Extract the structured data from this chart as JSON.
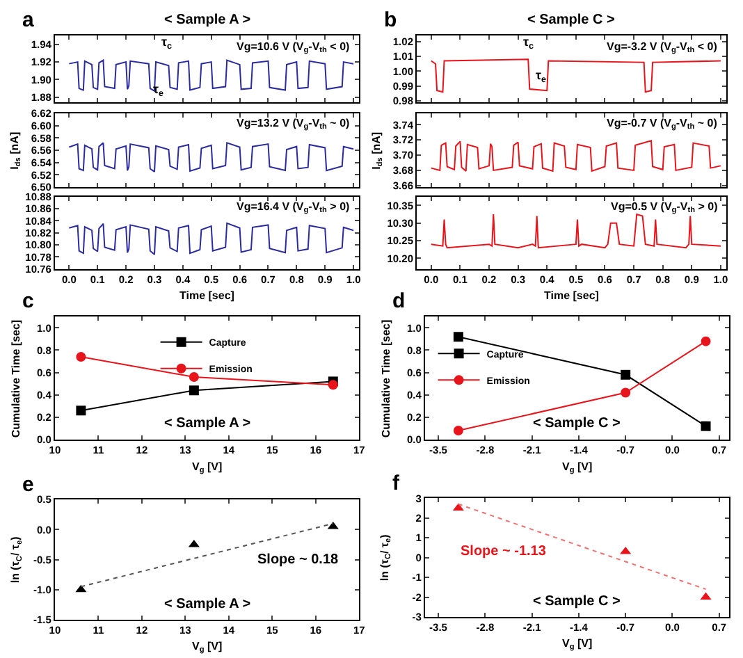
{
  "chart_data": [
    {
      "type": "line",
      "title": "a",
      "subtitle": "< Sample A >",
      "x": [
        0,
        0.03,
        0.035,
        0.05,
        0.055,
        0.08,
        0.085,
        0.1,
        0.105,
        0.12,
        0.125,
        0.16,
        0.165,
        0.2,
        0.205,
        0.21,
        0.215,
        0.28,
        0.285,
        0.3,
        0.305,
        0.35,
        0.355,
        0.38,
        0.385,
        0.42,
        0.425,
        0.46,
        0.465,
        0.5,
        0.505,
        0.55,
        0.555,
        0.6,
        0.605,
        0.64,
        0.645,
        0.7,
        0.705,
        0.76,
        0.765,
        0.8,
        0.805,
        0.84,
        0.845,
        0.9,
        0.905,
        0.96,
        0.965,
        1.0
      ],
      "series": [
        {
          "color": "#2b2ba0",
          "values": [
            1.918,
            1.92,
            1.89,
            1.888,
            1.921,
            1.917,
            1.891,
            1.889,
            1.919,
            1.922,
            1.892,
            1.89,
            1.917,
            1.92,
            1.889,
            1.893,
            1.921,
            1.918,
            1.89,
            1.887,
            1.92,
            1.916,
            1.891,
            1.889,
            1.919,
            1.921,
            1.888,
            1.891,
            1.918,
            1.92,
            1.89,
            1.892,
            1.922,
            1.917,
            1.889,
            1.89,
            1.919,
            1.921,
            1.891,
            1.888,
            1.917,
            1.92,
            1.89,
            1.891,
            1.921,
            1.918,
            1.889,
            1.892,
            1.92,
            1.918
          ]
        }
      ],
      "xlim": [
        -0.05,
        1.02
      ],
      "xticks": [
        {
          "value": 0,
          "label": null
        },
        {
          "value": 0.1,
          "label": null
        },
        {
          "value": 0.2,
          "label": null
        },
        {
          "value": 0.3,
          "label": null
        },
        {
          "value": 0.4,
          "label": null
        },
        {
          "value": 0.5,
          "label": null
        },
        {
          "value": 0.6,
          "label": null
        },
        {
          "value": 0.7,
          "label": null
        },
        {
          "value": 0.8,
          "label": null
        },
        {
          "value": 0.9,
          "label": null
        },
        {
          "value": 1,
          "label": null
        }
      ],
      "ylim": [
        1.874,
        1.95
      ],
      "yticks": [
        1.88,
        {
          "value": 1.9,
          "label": "1.90"
        },
        1.92,
        1.94
      ],
      "tick_labels": "y",
      "annotations": [
        "Vg=10.6 V (V$_{g}$-V$_{th}$ < 0)",
        "τ$_{c}$",
        "τ$_{e}$"
      ]
    },
    {
      "type": "line",
      "ylabel": "I$_{ds}$ [nA]",
      "x": [
        0,
        0.03,
        0.035,
        0.05,
        0.055,
        0.08,
        0.085,
        0.1,
        0.105,
        0.12,
        0.125,
        0.16,
        0.165,
        0.2,
        0.205,
        0.21,
        0.215,
        0.28,
        0.285,
        0.3,
        0.305,
        0.35,
        0.355,
        0.38,
        0.385,
        0.42,
        0.425,
        0.46,
        0.465,
        0.5,
        0.505,
        0.55,
        0.555,
        0.6,
        0.605,
        0.64,
        0.645,
        0.7,
        0.705,
        0.76,
        0.765,
        0.8,
        0.805,
        0.84,
        0.845,
        0.9,
        0.905,
        0.96,
        0.965,
        1.0
      ],
      "series": [
        {
          "color": "#2b2ba0",
          "values": [
            6.565,
            6.57,
            6.53,
            6.527,
            6.568,
            6.562,
            6.532,
            6.528,
            6.566,
            6.572,
            6.535,
            6.53,
            6.562,
            6.567,
            6.527,
            6.533,
            6.57,
            6.564,
            6.53,
            6.525,
            6.567,
            6.561,
            6.534,
            6.529,
            6.565,
            6.569,
            6.526,
            6.531,
            6.563,
            6.568,
            6.53,
            6.535,
            6.572,
            6.565,
            6.528,
            6.532,
            6.566,
            6.57,
            6.533,
            6.527,
            6.561,
            6.566,
            6.53,
            6.532,
            6.569,
            6.564,
            6.527,
            6.534,
            6.566,
            6.562
          ]
        }
      ],
      "xlim": [
        -0.05,
        1.02
      ],
      "xticks": [
        {
          "value": 0,
          "label": null
        },
        {
          "value": 0.1,
          "label": null
        },
        {
          "value": 0.2,
          "label": null
        },
        {
          "value": 0.3,
          "label": null
        },
        {
          "value": 0.4,
          "label": null
        },
        {
          "value": 0.5,
          "label": null
        },
        {
          "value": 0.6,
          "label": null
        },
        {
          "value": 0.7,
          "label": null
        },
        {
          "value": 0.8,
          "label": null
        },
        {
          "value": 0.9,
          "label": null
        },
        {
          "value": 1,
          "label": null
        }
      ],
      "ylim": [
        6.5,
        6.62
      ],
      "yticks": [
        {
          "value": 6.5,
          "label": "6.50"
        },
        6.52,
        6.54,
        6.56,
        6.58,
        {
          "value": 6.6,
          "label": "6.60"
        },
        6.62
      ],
      "tick_labels": "y",
      "annotations": [
        "Vg=13.2 V (V$_{g}$-V$_{th}$ ~ 0)"
      ]
    },
    {
      "type": "line",
      "xlabel": "Time [sec]",
      "x": [
        0,
        0.03,
        0.035,
        0.05,
        0.055,
        0.08,
        0.085,
        0.1,
        0.105,
        0.12,
        0.125,
        0.16,
        0.165,
        0.2,
        0.205,
        0.21,
        0.215,
        0.28,
        0.285,
        0.3,
        0.305,
        0.35,
        0.355,
        0.38,
        0.385,
        0.42,
        0.425,
        0.46,
        0.465,
        0.5,
        0.505,
        0.55,
        0.555,
        0.6,
        0.605,
        0.64,
        0.645,
        0.7,
        0.705,
        0.76,
        0.765,
        0.8,
        0.805,
        0.84,
        0.845,
        0.9,
        0.905,
        0.96,
        0.965,
        1.0
      ],
      "series": [
        {
          "color": "#2b2ba0",
          "values": [
            10.828,
            10.832,
            10.79,
            10.786,
            10.83,
            10.824,
            10.794,
            10.789,
            10.827,
            10.835,
            10.796,
            10.791,
            10.825,
            10.83,
            10.787,
            10.793,
            10.833,
            10.826,
            10.79,
            10.784,
            10.83,
            10.823,
            10.795,
            10.789,
            10.828,
            10.832,
            10.786,
            10.792,
            10.825,
            10.831,
            10.79,
            10.796,
            10.836,
            10.828,
            10.788,
            10.792,
            10.829,
            10.833,
            10.794,
            10.787,
            10.824,
            10.829,
            10.79,
            10.793,
            10.832,
            10.827,
            10.787,
            10.795,
            10.829,
            10.824
          ]
        }
      ],
      "xlim": [
        -0.05,
        1.02
      ],
      "xticks": [
        {
          "value": 0,
          "label": "0.0"
        },
        0.1,
        0.2,
        0.3,
        0.4,
        0.5,
        0.6,
        0.7,
        0.8,
        0.9,
        {
          "value": 1,
          "label": "1.0"
        }
      ],
      "ylim": [
        10.76,
        10.88
      ],
      "yticks": [
        10.76,
        10.78,
        {
          "value": 10.8,
          "label": "10.80"
        },
        10.82,
        10.84,
        10.86,
        10.88
      ],
      "annotations": [
        "Vg=16.4 V (V$_{g}$-V$_{th}$ > 0)"
      ]
    },
    {
      "type": "line",
      "title": "b",
      "subtitle": "< Sample C >",
      "x": [
        0,
        0.015,
        0.02,
        0.04,
        0.045,
        0.335,
        0.34,
        0.4,
        0.405,
        0.735,
        0.74,
        0.76,
        0.765,
        1.0
      ],
      "series": [
        {
          "color": "#e8141b",
          "values": [
            1.007,
            1.005,
            0.987,
            0.986,
            1.007,
            1.008,
            0.988,
            0.987,
            1.007,
            1.006,
            0.986,
            0.987,
            1.006,
            1.007
          ]
        }
      ],
      "xlim": [
        -0.05,
        1.02
      ],
      "xticks": [
        {
          "value": 0,
          "label": null
        },
        {
          "value": 0.1,
          "label": null
        },
        {
          "value": 0.2,
          "label": null
        },
        {
          "value": 0.3,
          "label": null
        },
        {
          "value": 0.4,
          "label": null
        },
        {
          "value": 0.5,
          "label": null
        },
        {
          "value": 0.6,
          "label": null
        },
        {
          "value": 0.7,
          "label": null
        },
        {
          "value": 0.8,
          "label": null
        },
        {
          "value": 0.9,
          "label": null
        },
        {
          "value": 1,
          "label": null
        }
      ],
      "ylim": [
        0.979,
        1.024
      ],
      "yticks": [
        0.98,
        0.99,
        {
          "value": 1,
          "label": "1.00"
        },
        1.01,
        1.02
      ],
      "tick_labels": "y",
      "annotations": [
        "Vg=-3.2 V (V$_{g}$-V$_{th}$ < 0)",
        "τ$_{c}$",
        "τ$_{e}$"
      ]
    },
    {
      "type": "line",
      "ylabel": "I$_{ds}$ [nA]",
      "x": [
        0,
        0.03,
        0.035,
        0.05,
        0.055,
        0.08,
        0.085,
        0.1,
        0.105,
        0.12,
        0.125,
        0.16,
        0.165,
        0.2,
        0.205,
        0.21,
        0.215,
        0.28,
        0.285,
        0.3,
        0.305,
        0.35,
        0.355,
        0.38,
        0.385,
        0.42,
        0.425,
        0.46,
        0.465,
        0.5,
        0.505,
        0.55,
        0.555,
        0.6,
        0.605,
        0.64,
        0.645,
        0.7,
        0.705,
        0.76,
        0.765,
        0.8,
        0.805,
        0.84,
        0.845,
        0.9,
        0.905,
        0.96,
        0.965,
        1.0
      ],
      "series": [
        {
          "color": "#e8141b",
          "values": [
            3.683,
            3.68,
            3.713,
            3.716,
            3.685,
            3.681,
            3.712,
            3.718,
            3.684,
            3.679,
            3.714,
            3.71,
            3.682,
            3.686,
            3.715,
            3.711,
            3.68,
            3.684,
            3.713,
            3.717,
            3.686,
            3.682,
            3.711,
            3.715,
            3.683,
            3.679,
            3.716,
            3.712,
            3.684,
            3.681,
            3.714,
            3.71,
            3.679,
            3.685,
            3.712,
            3.716,
            3.683,
            3.68,
            3.713,
            3.719,
            3.685,
            3.681,
            3.711,
            3.714,
            3.68,
            3.684,
            3.716,
            3.712,
            3.683,
            3.686
          ]
        }
      ],
      "xlim": [
        -0.05,
        1.02
      ],
      "xticks": [
        {
          "value": 0,
          "label": null
        },
        {
          "value": 0.1,
          "label": null
        },
        {
          "value": 0.2,
          "label": null
        },
        {
          "value": 0.3,
          "label": null
        },
        {
          "value": 0.4,
          "label": null
        },
        {
          "value": 0.5,
          "label": null
        },
        {
          "value": 0.6,
          "label": null
        },
        {
          "value": 0.7,
          "label": null
        },
        {
          "value": 0.8,
          "label": null
        },
        {
          "value": 0.9,
          "label": null
        },
        {
          "value": 1,
          "label": null
        }
      ],
      "ylim": [
        3.658,
        3.755
      ],
      "yticks": [
        3.66,
        3.68,
        {
          "value": 3.7,
          "label": "3.70"
        },
        3.72,
        3.74
      ],
      "tick_labels": "y",
      "annotations": [
        "Vg=-0.7 V (V$_{g}$-V$_{th}$ ~ 0)"
      ]
    },
    {
      "type": "line",
      "xlabel": "Time [sec]",
      "x": [
        0,
        0.04,
        0.045,
        0.05,
        0.055,
        0.2,
        0.21,
        0.215,
        0.22,
        0.3,
        0.35,
        0.36,
        0.365,
        0.37,
        0.5,
        0.505,
        0.51,
        0.52,
        0.6,
        0.61,
        0.62,
        0.64,
        0.65,
        0.7,
        0.71,
        0.73,
        0.74,
        0.77,
        0.775,
        0.78,
        0.88,
        0.89,
        0.895,
        0.9,
        1.0
      ],
      "series": [
        {
          "color": "#e8141b",
          "values": [
            10.24,
            10.235,
            10.31,
            10.24,
            10.23,
            10.24,
            10.235,
            10.325,
            10.24,
            10.23,
            10.24,
            10.235,
            10.32,
            10.23,
            10.24,
            10.31,
            10.235,
            10.24,
            10.23,
            10.24,
            10.3,
            10.3,
            10.24,
            10.235,
            10.325,
            10.32,
            10.24,
            10.235,
            10.31,
            10.24,
            10.23,
            10.24,
            10.32,
            10.24,
            10.235
          ]
        }
      ],
      "xlim": [
        -0.05,
        1.02
      ],
      "xticks": [
        {
          "value": 0,
          "label": "0.0"
        },
        0.1,
        0.2,
        0.3,
        0.4,
        0.5,
        0.6,
        0.7,
        0.8,
        0.9,
        {
          "value": 1,
          "label": "1.0"
        }
      ],
      "ylim": [
        10.17,
        10.375
      ],
      "yticks": [
        {
          "value": 10.2,
          "label": "10.20"
        },
        10.25,
        {
          "value": 10.3,
          "label": "10.30"
        },
        10.35
      ],
      "annotations": [
        "Vg=0.5 V (V$_{g}$-V$_{th}$ > 0)"
      ]
    },
    {
      "type": "line",
      "title": "c",
      "xlabel": "V$_{g}$ [V]",
      "ylabel": "Cumulative Time [sec]",
      "x": [
        10.6,
        13.2,
        16.4
      ],
      "legend": "top",
      "series": [
        {
          "name": "Capture",
          "color": "#000000",
          "marker": "square",
          "values": [
            0.26,
            0.44,
            0.52
          ]
        },
        {
          "name": "Emission",
          "color": "#e8141b",
          "marker": "circle",
          "values": [
            0.74,
            0.56,
            0.49
          ]
        }
      ],
      "xlim": [
        10,
        17
      ],
      "xticks": [
        10,
        11,
        12,
        13,
        14,
        15,
        16,
        17
      ],
      "ylim": [
        0,
        1.1
      ],
      "yticks": [
        {
          "value": 0,
          "label": "0.0"
        },
        0.2,
        0.4,
        0.6,
        0.8,
        {
          "value": 1,
          "label": "1.0"
        }
      ],
      "annotations": [
        "< Sample A >"
      ]
    },
    {
      "type": "line",
      "title": "d",
      "xlabel": "V$_{g}$ [V]",
      "ylabel": "Cumulative Time [sec]",
      "x": [
        -3.2,
        -0.7,
        0.5
      ],
      "legend": "left",
      "series": [
        {
          "name": "Capture",
          "color": "#000000",
          "marker": "square",
          "values": [
            0.92,
            0.58,
            0.12
          ]
        },
        {
          "name": "Emission",
          "color": "#e8141b",
          "marker": "circle",
          "values": [
            0.08,
            0.42,
            0.88
          ]
        }
      ],
      "xlim": [
        -3.7,
        0.85
      ],
      "xticks": [
        -3.5,
        -2.8,
        -2.1,
        -1.4,
        -0.7,
        {
          "value": 0,
          "label": "0.0"
        },
        0.7
      ],
      "ylim": [
        0,
        1.1
      ],
      "yticks": [
        {
          "value": 0,
          "label": "0.0"
        },
        0.2,
        0.4,
        0.6,
        0.8,
        {
          "value": 1,
          "label": "1.0"
        }
      ],
      "annotations": [
        "< Sample C >"
      ]
    },
    {
      "type": "scatter",
      "title": "e",
      "xlabel": "V$_{g}$ [V]",
      "ylabel": "ln (τ$_{C}$/ τ$_{e}$)",
      "x": [
        10.6,
        13.2,
        16.4
      ],
      "series": [
        {
          "color": "#000000",
          "marker": "triangle",
          "values": [
            -1.0,
            -0.25,
            0.05
          ]
        },
        {
          "type": "line",
          "color": "#555555",
          "line_style": "dotted",
          "x": [
            10.6,
            16.4
          ],
          "values": [
            -0.95,
            0.1
          ]
        }
      ],
      "xlim": [
        10,
        17
      ],
      "xticks": [
        10,
        11,
        12,
        13,
        14,
        15,
        16,
        17
      ],
      "ylim": [
        -1.5,
        0.5
      ],
      "yticks": [
        -1.5,
        {
          "value": -1,
          "label": "-1.0"
        },
        -0.5,
        {
          "value": 0,
          "label": "0.0"
        },
        0.5
      ],
      "annotations": [
        "Slope ~ 0.18",
        "< Sample A >"
      ]
    },
    {
      "type": "scatter",
      "title": "f",
      "xlabel": "V$_{g}$ [V]",
      "ylabel": "ln (τ$_{C}$/ τ$_{e}$)",
      "x": [
        -3.2,
        -0.7,
        0.5
      ],
      "series": [
        {
          "color": "#e8141b",
          "marker": "triangle",
          "values": [
            2.5,
            0.3,
            -2.0
          ]
        },
        {
          "type": "line",
          "color": "#f07070",
          "line_style": "dotted",
          "x": [
            -3.2,
            0.5
          ],
          "values": [
            2.7,
            -1.6
          ]
        }
      ],
      "xlim": [
        -3.7,
        0.85
      ],
      "xticks": [
        -3.5,
        -2.8,
        -2.1,
        -1.4,
        -0.7,
        {
          "value": 0,
          "label": "0.0"
        },
        0.7
      ],
      "ylim": [
        -3,
        3
      ],
      "yticks": [
        -3,
        -2,
        -1,
        0,
        1,
        2,
        3
      ],
      "annotations": [
        "Slope ~ -1.13",
        "< Sample C >"
      ]
    }
  ]
}
